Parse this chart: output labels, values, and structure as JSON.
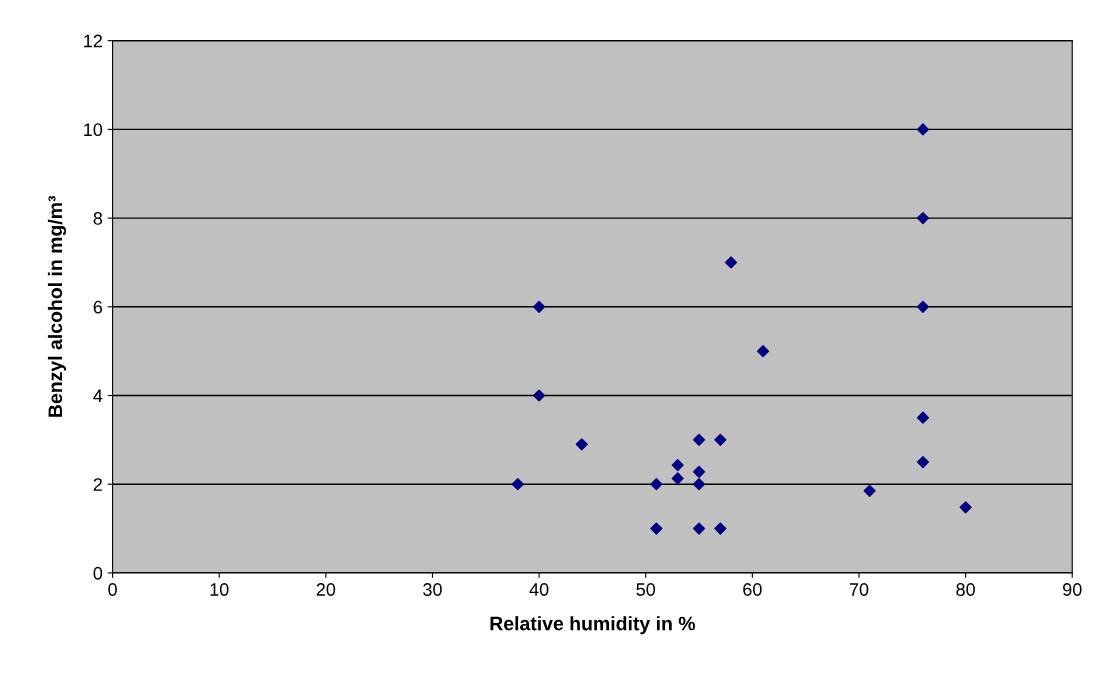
{
  "chart_data": {
    "type": "scatter",
    "xlabel": "Relative humidity in %",
    "ylabel": "Benzyl alcohol in mg/m³",
    "x": [
      38,
      40,
      40,
      44,
      51,
      51,
      53,
      53,
      55,
      55,
      55,
      55,
      57,
      57,
      58,
      61,
      71,
      76,
      76,
      76,
      76,
      76,
      80
    ],
    "series": [
      {
        "color": "#000080",
        "values": [
          2,
          6,
          4,
          2.9,
          2,
          1,
          2.43,
          2.13,
          3,
          2.28,
          2,
          1,
          3,
          1,
          7,
          5,
          1.85,
          10,
          8,
          6,
          3.5,
          2.5,
          1.48
        ]
      }
    ],
    "xlim": [
      0,
      90
    ],
    "xticks": [
      0,
      10,
      20,
      30,
      40,
      50,
      60,
      70,
      80,
      90
    ],
    "ylim": [
      0,
      12
    ],
    "yticks": [
      0,
      2,
      4,
      6,
      8,
      10,
      12
    ],
    "grid": "y",
    "marker": "diamond",
    "legend": false
  }
}
